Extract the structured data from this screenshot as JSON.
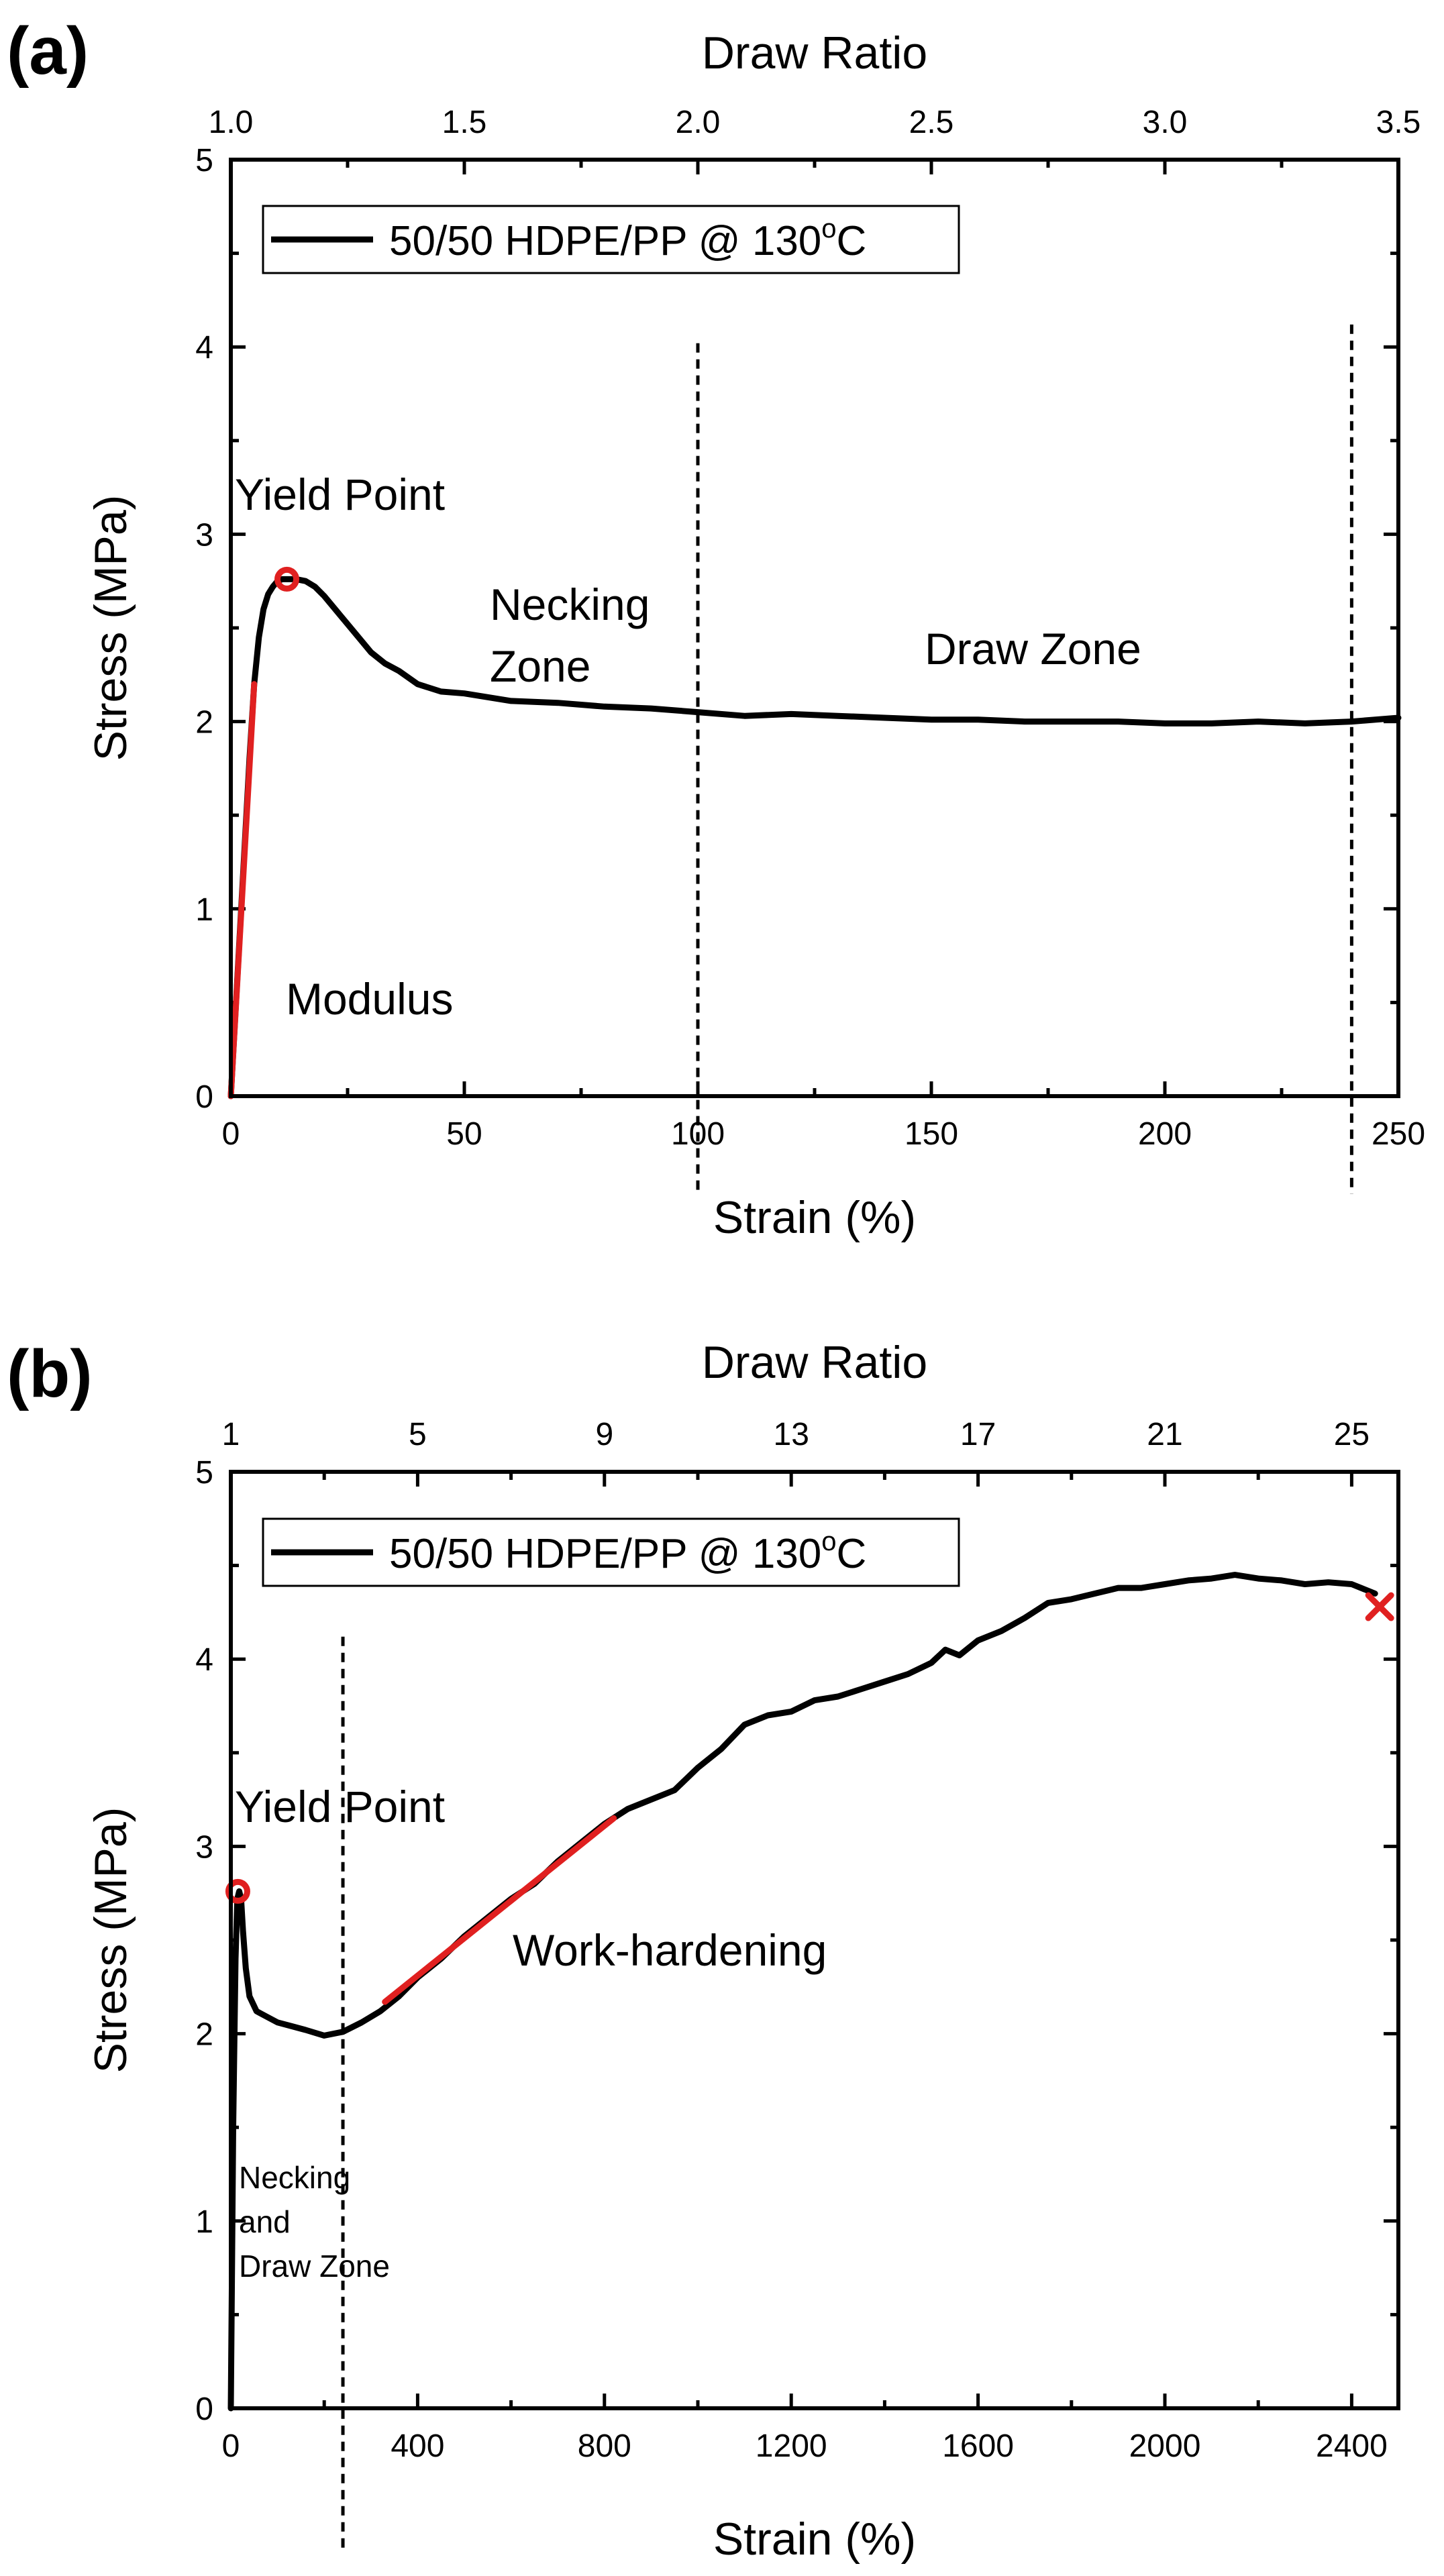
{
  "chart_data": [
    {
      "panel_label": "(a)",
      "type": "line",
      "top_axis": {
        "label": "Draw Ratio",
        "ticks": [
          "1.0",
          "1.5",
          "2.0",
          "2.5",
          "3.0",
          "3.5"
        ],
        "range": [
          1.0,
          3.5
        ]
      },
      "xlabel": "Strain (%)",
      "ylabel": "Stress (MPa)",
      "xlim": [
        0,
        250
      ],
      "ylim": [
        0,
        5
      ],
      "xticks": [
        0,
        50,
        100,
        150,
        200,
        250
      ],
      "yticks": [
        0,
        1,
        2,
        3,
        4,
        5
      ],
      "legend": {
        "text": "50/50 HDPE/PP @ 130",
        "sup": "o",
        "suffix": "C",
        "position": "top-left"
      },
      "series": [
        {
          "name": "50/50 HDPE/PP @ 130oC",
          "color": "#000000",
          "x": [
            0,
            2,
            4,
            5,
            6,
            7,
            8,
            9,
            10,
            11,
            12,
            13,
            14,
            16,
            18,
            20,
            22,
            25,
            28,
            30,
            33,
            36,
            40,
            45,
            50,
            55,
            60,
            70,
            80,
            90,
            100,
            110,
            120,
            130,
            140,
            150,
            160,
            170,
            180,
            190,
            200,
            210,
            220,
            230,
            240,
            250
          ],
          "y": [
            0,
            0.9,
            1.8,
            2.2,
            2.45,
            2.6,
            2.68,
            2.72,
            2.75,
            2.76,
            2.76,
            2.76,
            2.76,
            2.75,
            2.72,
            2.67,
            2.61,
            2.52,
            2.43,
            2.37,
            2.31,
            2.27,
            2.2,
            2.16,
            2.15,
            2.13,
            2.11,
            2.1,
            2.08,
            2.07,
            2.05,
            2.03,
            2.04,
            2.03,
            2.02,
            2.01,
            2.01,
            2.0,
            2.0,
            2.0,
            1.99,
            1.99,
            2.0,
            1.99,
            2.0,
            2.02
          ]
        },
        {
          "name": "Modulus fit",
          "color": "#e02020",
          "x": [
            0,
            5
          ],
          "y": [
            0,
            2.2
          ]
        }
      ],
      "markers": [
        {
          "name": "Yield point",
          "x": 12,
          "y": 2.76,
          "symbol": "circle",
          "color": "#e02020"
        }
      ],
      "vlines": [
        {
          "x": 100,
          "ymax": 4.02
        },
        {
          "x": 240,
          "ymax": 4.12
        }
      ],
      "annotations": {
        "yield_point": "Yield Point",
        "necking_line1": "Necking",
        "necking_line2": "Zone",
        "draw_zone": "Draw Zone",
        "modulus": "Modulus"
      }
    },
    {
      "panel_label": "(b)",
      "type": "line",
      "top_axis": {
        "label": "Draw Ratio",
        "ticks": [
          "1",
          "5",
          "9",
          "13",
          "17",
          "21",
          "25"
        ],
        "range": [
          1,
          26
        ]
      },
      "xlabel": "Strain (%)",
      "ylabel": "Stress (MPa)",
      "xlim": [
        0,
        2500
      ],
      "ylim": [
        0,
        5
      ],
      "xticks": [
        0,
        400,
        800,
        1200,
        1600,
        2000,
        2400
      ],
      "yticks": [
        0,
        1,
        2,
        3,
        4,
        5
      ],
      "legend": {
        "text": "50/50 HDPE/PP @ 130",
        "sup": "o",
        "suffix": "C",
        "position": "top-left"
      },
      "series": [
        {
          "name": "50/50 HDPE/PP @ 130oC",
          "color": "#000000",
          "x": [
            0,
            5,
            10,
            14,
            18,
            22,
            26,
            32,
            40,
            55,
            70,
            100,
            130,
            160,
            200,
            240,
            280,
            320,
            360,
            400,
            450,
            500,
            550,
            600,
            650,
            700,
            750,
            800,
            850,
            900,
            950,
            1000,
            1050,
            1100,
            1150,
            1200,
            1250,
            1300,
            1350,
            1400,
            1450,
            1500,
            1530,
            1560,
            1600,
            1650,
            1700,
            1750,
            1800,
            1850,
            1900,
            1950,
            2000,
            2050,
            2100,
            2150,
            2200,
            2250,
            2300,
            2350,
            2400,
            2450
          ],
          "y": [
            0,
            1.5,
            2.4,
            2.72,
            2.76,
            2.72,
            2.55,
            2.35,
            2.2,
            2.12,
            2.1,
            2.06,
            2.04,
            2.02,
            1.99,
            2.01,
            2.06,
            2.12,
            2.2,
            2.3,
            2.4,
            2.52,
            2.62,
            2.72,
            2.8,
            2.92,
            3.02,
            3.12,
            3.2,
            3.25,
            3.3,
            3.42,
            3.52,
            3.65,
            3.7,
            3.72,
            3.78,
            3.8,
            3.84,
            3.88,
            3.92,
            3.98,
            4.05,
            4.02,
            4.1,
            4.15,
            4.22,
            4.3,
            4.32,
            4.35,
            4.38,
            4.38,
            4.4,
            4.42,
            4.43,
            4.45,
            4.43,
            4.42,
            4.4,
            4.41,
            4.4,
            4.35
          ]
        },
        {
          "name": "Work-hardening fit",
          "color": "#e02020",
          "x": [
            330,
            820
          ],
          "y": [
            2.17,
            3.15
          ]
        }
      ],
      "markers": [
        {
          "name": "Yield point",
          "x": 15,
          "y": 2.76,
          "symbol": "circle",
          "color": "#e02020"
        },
        {
          "name": "Failure",
          "x": 2460,
          "y": 4.28,
          "symbol": "x",
          "color": "#e02020"
        }
      ],
      "vlines": [
        {
          "x": 240,
          "ymax": 4.12
        }
      ],
      "annotations": {
        "yield_point": "Yield Point",
        "work_hardening": "Work-hardening",
        "necking_line1": "Necking",
        "necking_line2": "and",
        "necking_line3": "Draw Zone"
      }
    }
  ]
}
